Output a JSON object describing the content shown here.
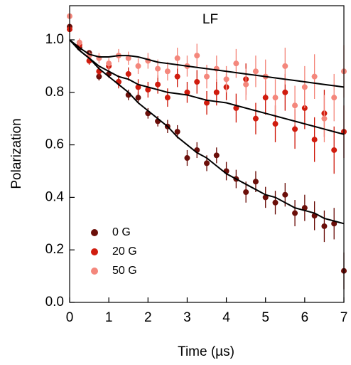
{
  "chart_data": {
    "type": "scatter",
    "title": "LF",
    "x_label": "Time (µs)",
    "y_label": "Polarization",
    "x": [
      0,
      0.25,
      0.5,
      0.75,
      1,
      1.25,
      1.5,
      1.75,
      2,
      2.25,
      2.5,
      2.75,
      3,
      3.25,
      3.5,
      3.75,
      4,
      4.25,
      4.5,
      4.75,
      5,
      5.25,
      5.5,
      5.75,
      6,
      6.25,
      6.5,
      6.75,
      7
    ],
    "series": [
      {
        "name": "0 G",
        "color": "#6b0f0a",
        "values": [
          1.05,
          0.97,
          0.95,
          0.86,
          0.87,
          0.84,
          0.79,
          0.78,
          0.72,
          0.69,
          0.67,
          0.65,
          0.55,
          0.58,
          0.53,
          0.56,
          0.5,
          0.47,
          0.42,
          0.46,
          0.4,
          0.38,
          0.41,
          0.34,
          0.36,
          0.33,
          0.29,
          0.3,
          0.12
        ],
        "errors": [
          0.01,
          0.01,
          0.01,
          0.015,
          0.015,
          0.015,
          0.02,
          0.02,
          0.02,
          0.02,
          0.025,
          0.025,
          0.03,
          0.03,
          0.03,
          0.03,
          0.035,
          0.035,
          0.04,
          0.04,
          0.04,
          0.045,
          0.045,
          0.05,
          0.05,
          0.055,
          0.06,
          0.06,
          0.07
        ]
      },
      {
        "name": "20 G",
        "color": "#d01c0e",
        "values": [
          1.04,
          0.98,
          0.92,
          0.88,
          0.9,
          0.84,
          0.87,
          0.82,
          0.81,
          0.83,
          0.78,
          0.86,
          0.8,
          0.84,
          0.76,
          0.8,
          0.82,
          0.74,
          0.85,
          0.7,
          0.78,
          0.68,
          0.8,
          0.66,
          0.74,
          0.62,
          0.72,
          0.58,
          0.65
        ],
        "errors": [
          0.01,
          0.015,
          0.015,
          0.02,
          0.02,
          0.025,
          0.025,
          0.03,
          0.03,
          0.035,
          0.035,
          0.04,
          0.04,
          0.045,
          0.045,
          0.05,
          0.05,
          0.055,
          0.06,
          0.06,
          0.065,
          0.07,
          0.07,
          0.075,
          0.08,
          0.085,
          0.09,
          0.09,
          0.1
        ]
      },
      {
        "name": "50 G",
        "color": "#f4877c",
        "values": [
          1.09,
          0.99,
          0.94,
          0.93,
          0.91,
          0.94,
          0.93,
          0.9,
          0.92,
          0.89,
          0.88,
          0.93,
          0.9,
          0.94,
          0.86,
          0.89,
          0.85,
          0.91,
          0.83,
          0.88,
          0.86,
          0.78,
          0.9,
          0.75,
          0.82,
          0.86,
          0.7,
          0.78,
          0.88
        ],
        "errors": [
          0.01,
          0.015,
          0.015,
          0.02,
          0.02,
          0.025,
          0.025,
          0.03,
          0.03,
          0.035,
          0.035,
          0.04,
          0.04,
          0.045,
          0.045,
          0.05,
          0.05,
          0.055,
          0.06,
          0.06,
          0.065,
          0.07,
          0.07,
          0.075,
          0.08,
          0.085,
          0.09,
          0.09,
          0.1
        ]
      }
    ],
    "fits": [
      {
        "color": "#000000",
        "values": [
          1.0,
          0.96,
          0.93,
          0.89,
          0.86,
          0.83,
          0.8,
          0.76,
          0.73,
          0.7,
          0.67,
          0.63,
          0.6,
          0.57,
          0.55,
          0.52,
          0.49,
          0.47,
          0.45,
          0.43,
          0.41,
          0.4,
          0.38,
          0.36,
          0.35,
          0.34,
          0.32,
          0.31,
          0.3
        ]
      },
      {
        "color": "#000000",
        "values": [
          1.0,
          0.96,
          0.93,
          0.9,
          0.88,
          0.86,
          0.85,
          0.83,
          0.82,
          0.81,
          0.8,
          0.795,
          0.79,
          0.78,
          0.77,
          0.765,
          0.76,
          0.75,
          0.74,
          0.73,
          0.72,
          0.71,
          0.7,
          0.69,
          0.68,
          0.67,
          0.66,
          0.65,
          0.64
        ]
      },
      {
        "color": "#000000",
        "values": [
          1.0,
          0.97,
          0.945,
          0.935,
          0.935,
          0.94,
          0.94,
          0.935,
          0.925,
          0.915,
          0.91,
          0.905,
          0.9,
          0.895,
          0.89,
          0.885,
          0.88,
          0.875,
          0.87,
          0.865,
          0.86,
          0.855,
          0.85,
          0.845,
          0.84,
          0.835,
          0.83,
          0.825,
          0.82
        ]
      }
    ],
    "xlim": [
      0,
      7
    ],
    "xticks": [
      0,
      1,
      2,
      3,
      4,
      5,
      6,
      7
    ],
    "ylim": [
      0,
      1.13
    ],
    "yticks": [
      {
        "value": 0,
        "label": "0.0"
      },
      0.2,
      0.4,
      0.6,
      0.8,
      {
        "value": 1,
        "label": "1.0"
      }
    ],
    "legend": "lower left"
  }
}
